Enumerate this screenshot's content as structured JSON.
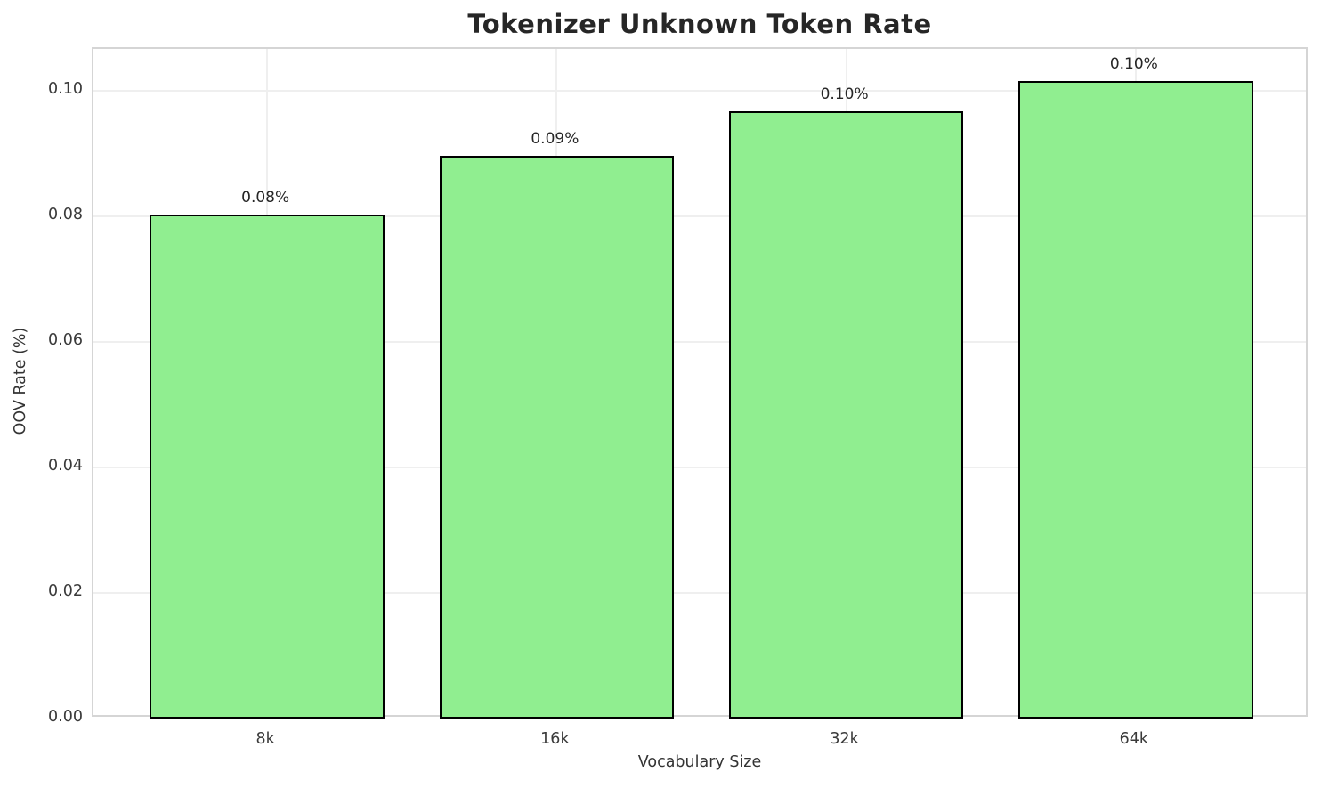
{
  "chart_data": {
    "type": "bar",
    "title": "Tokenizer Unknown Token Rate",
    "xlabel": "Vocabulary Size",
    "ylabel": "OOV Rate (%)",
    "categories": [
      "8k",
      "16k",
      "32k",
      "64k"
    ],
    "values": [
      0.0803,
      0.0896,
      0.0967,
      0.1015
    ],
    "bar_labels": [
      "0.08%",
      "0.09%",
      "0.10%",
      "0.10%"
    ],
    "ytick_values": [
      0.0,
      0.02,
      0.04,
      0.06,
      0.08,
      0.1
    ],
    "ytick_labels": [
      "0.00",
      "0.02",
      "0.04",
      "0.06",
      "0.08",
      "0.10"
    ],
    "ylim": [
      0,
      0.1066
    ],
    "xlim": [
      -0.6,
      3.6
    ],
    "bar_width_frac": 0.81,
    "grid": true,
    "legend": false,
    "colors": {
      "bar_fill": "#90EE90",
      "bar_edge": "#000000",
      "grid": "#efefef",
      "spine": "#d5d5d5",
      "tick_text": "#3a3a3a",
      "title_text": "#262626",
      "background": "#ffffff"
    }
  }
}
